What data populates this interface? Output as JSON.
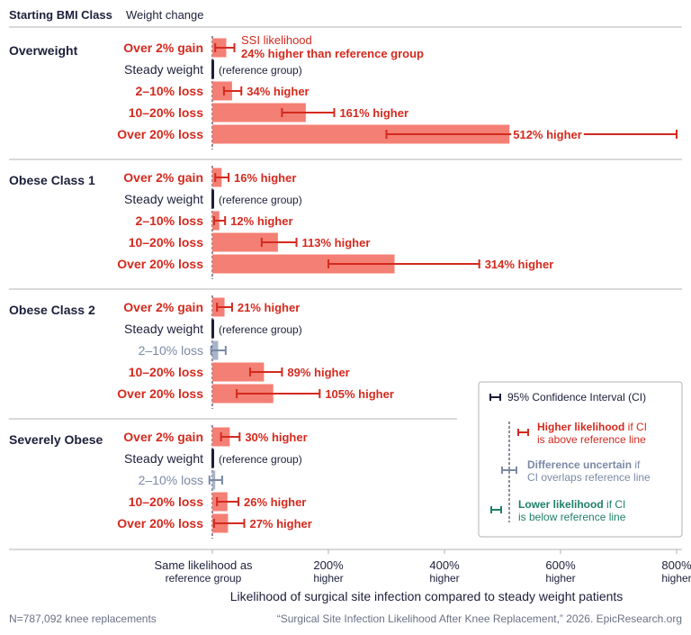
{
  "header": {
    "col1": "Starting BMI Class",
    "col2": "Weight change"
  },
  "colors": {
    "higher": "#d42a1e",
    "higher_bar": "#f47f74",
    "uncertain": "#7a8aa6",
    "uncertain_bar": "#a8b4c8",
    "lower": "#1f8069",
    "reference": "#1c1f3a",
    "grid": "#b3b3b3"
  },
  "chart_data": {
    "type": "bar",
    "orientation": "horizontal",
    "title": "",
    "xlabel": "Likelihood of surgical site infection compared to steady weight patients",
    "xlim": [
      0,
      800
    ],
    "x_ticks": [
      {
        "value": 0,
        "lines": [
          "Same likelihood as",
          "reference group"
        ]
      },
      {
        "value": 200,
        "lines": [
          "200%",
          "higher"
        ]
      },
      {
        "value": 400,
        "lines": [
          "400%",
          "higher"
        ]
      },
      {
        "value": 600,
        "lines": [
          "600%",
          "higher"
        ]
      },
      {
        "value": 800,
        "lines": [
          "800%",
          "higher"
        ]
      }
    ],
    "groups": [
      {
        "name": "Overweight",
        "rows": [
          {
            "label": "Over 2% gain",
            "value": 24,
            "ci_low": 5,
            "ci_high": 38,
            "status": "higher",
            "annotation_top": "SSI likelihood",
            "annotation": "24% higher than reference group"
          },
          {
            "label": "Steady weight",
            "value": 0,
            "status": "reference",
            "annotation": "(reference group)"
          },
          {
            "label": "2–10% loss",
            "value": 34,
            "ci_low": 20,
            "ci_high": 50,
            "status": "higher",
            "annotation": "34% higher"
          },
          {
            "label": "10–20% loss",
            "value": 161,
            "ci_low": 120,
            "ci_high": 210,
            "status": "higher",
            "annotation": "161% higher"
          },
          {
            "label": "Over 20% loss",
            "value": 512,
            "ci_low": 300,
            "ci_high": 800,
            "status": "higher",
            "annotation": "512% higher"
          }
        ]
      },
      {
        "name": "Obese Class 1",
        "rows": [
          {
            "label": "Over 2% gain",
            "value": 16,
            "ci_low": 5,
            "ci_high": 28,
            "status": "higher",
            "annotation": "16% higher"
          },
          {
            "label": "Steady weight",
            "value": 0,
            "status": "reference",
            "annotation": "(reference group)"
          },
          {
            "label": "2–10% loss",
            "value": 12,
            "ci_low": 3,
            "ci_high": 22,
            "status": "higher",
            "annotation": "12% higher"
          },
          {
            "label": "10–20% loss",
            "value": 113,
            "ci_low": 85,
            "ci_high": 145,
            "status": "higher",
            "annotation": "113% higher"
          },
          {
            "label": "Over 20% loss",
            "value": 314,
            "ci_low": 200,
            "ci_high": 460,
            "status": "higher",
            "annotation": "314% higher"
          }
        ]
      },
      {
        "name": "Obese Class 2",
        "rows": [
          {
            "label": "Over 2% gain",
            "value": 21,
            "ci_low": 8,
            "ci_high": 34,
            "status": "higher",
            "annotation": "21% higher"
          },
          {
            "label": "Steady weight",
            "value": 0,
            "status": "reference",
            "annotation": "(reference group)"
          },
          {
            "label": "2–10% loss",
            "value": 10,
            "ci_low": -2,
            "ci_high": 23,
            "status": "uncertain",
            "annotation": ""
          },
          {
            "label": "10–20% loss",
            "value": 89,
            "ci_low": 65,
            "ci_high": 120,
            "status": "higher",
            "annotation": "89% higher"
          },
          {
            "label": "Over 20% loss",
            "value": 105,
            "ci_low": 42,
            "ci_high": 185,
            "status": "higher",
            "annotation": "105% higher"
          }
        ]
      },
      {
        "name": "Severely Obese",
        "rows": [
          {
            "label": "Over 2% gain",
            "value": 30,
            "ci_low": 15,
            "ci_high": 47,
            "status": "higher",
            "annotation": "30% higher"
          },
          {
            "label": "Steady weight",
            "value": 0,
            "status": "reference",
            "annotation": "(reference group)"
          },
          {
            "label": "2–10% loss",
            "value": 5,
            "ci_low": -5,
            "ci_high": 17,
            "status": "uncertain",
            "annotation": ""
          },
          {
            "label": "10–20% loss",
            "value": 26,
            "ci_low": 8,
            "ci_high": 45,
            "status": "higher",
            "annotation": "26% higher"
          },
          {
            "label": "Over 20% loss",
            "value": 27,
            "ci_low": 3,
            "ci_high": 55,
            "status": "higher",
            "annotation": "27% higher"
          }
        ]
      }
    ],
    "legend": {
      "position": "right",
      "ci": "95% Confidence Interval (CI)",
      "higher_bold": "Higher likelihood",
      "higher_rest1": " if CI",
      "higher_rest2": "is above reference line",
      "uncertain_bold": "Difference uncertain",
      "uncertain_rest1": " if",
      "uncertain_rest2": "CI overlaps reference line",
      "lower_bold": "Lower likelihood",
      "lower_rest1": " if CI",
      "lower_rest2": "is below reference line"
    }
  },
  "footer": {
    "left": "N=787,092 knee replacements",
    "right": "“Surgical Site Infection Likelihood After Knee Replacement,” 2026. EpicResearch.org"
  }
}
